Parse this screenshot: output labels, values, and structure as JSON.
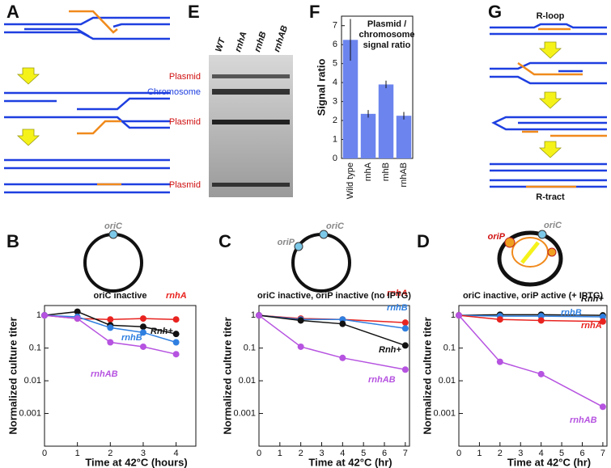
{
  "panel_letters": [
    "A",
    "E",
    "F",
    "G",
    "B",
    "C",
    "D"
  ],
  "gel": {
    "lanes": [
      "WT",
      "rnhA",
      "rnhB",
      "rnhAB"
    ],
    "bands": [
      "Plasmid",
      "Chromosome",
      "Plasmid",
      "Plasmid"
    ]
  },
  "schematic_g": {
    "top": "R-loop",
    "bottom": "R-tract"
  },
  "maps": [
    {
      "origins": [
        "oriC"
      ]
    },
    {
      "origins": [
        "oriC",
        "oriP"
      ]
    },
    {
      "origins": [
        "oriC",
        "oriP"
      ]
    }
  ],
  "chart_data": [
    {
      "type": "bar",
      "title": [
        "Plasmid /",
        "chromosome",
        "signal ratio"
      ],
      "ylabel": "Signal ratio",
      "categories": [
        "Wild type",
        "rnhA",
        "rnhB",
        "rnhAB"
      ],
      "values": [
        6.25,
        2.35,
        3.9,
        2.25
      ],
      "errors": [
        1.1,
        0.2,
        0.2,
        0.2
      ],
      "color": "#6b84ee",
      "ylim": [
        0,
        7.5
      ],
      "yticks": [
        0,
        1,
        2,
        3,
        4,
        5,
        6,
        7
      ]
    },
    {
      "type": "line",
      "title": "oriC inactive",
      "xlabel": "Time at 42°C (hours)",
      "ylabel": "Normalized culture titer",
      "log_y": true,
      "x": [
        0,
        1,
        2,
        3,
        4
      ],
      "xlim": [
        0,
        4.6
      ],
      "xticks": [
        0,
        1,
        2,
        3,
        4
      ],
      "ylim": [
        0.0001,
        2
      ],
      "yticks": [
        0.001,
        0.01,
        0.1,
        1
      ],
      "series": [
        {
          "name": "rnhA",
          "color": "#e8231f",
          "values": [
            1,
            0.8,
            0.75,
            0.8,
            0.75
          ]
        },
        {
          "name": "Rnh+",
          "color": "#111111",
          "values": [
            1,
            1.3,
            0.5,
            0.45,
            0.27
          ]
        },
        {
          "name": "rnhB",
          "color": "#2f7fe0",
          "values": [
            1,
            0.9,
            0.42,
            0.3,
            0.15
          ]
        },
        {
          "name": "rnhAB",
          "color": "#b653e0",
          "values": [
            1,
            0.8,
            0.15,
            0.11,
            0.065
          ]
        }
      ]
    },
    {
      "type": "line",
      "title": "oriC inactive, oriP inactive (no IPTG)",
      "xlabel": "Time at 42°C (hr)",
      "ylabel": "Normalized culture titer",
      "log_y": true,
      "x": [
        0,
        2,
        4,
        7
      ],
      "xlim": [
        0,
        7.2
      ],
      "xticks": [
        0,
        1,
        2,
        3,
        4,
        5,
        6,
        7
      ],
      "ylim": [
        0.0001,
        2
      ],
      "yticks": [
        0.001,
        0.01,
        0.1,
        1
      ],
      "series": [
        {
          "name": "rnhA",
          "color": "#e8231f",
          "values": [
            1,
            0.8,
            0.75,
            0.6
          ]
        },
        {
          "name": "rnhB",
          "color": "#2f7fe0",
          "values": [
            1,
            0.75,
            0.75,
            0.4
          ]
        },
        {
          "name": "Rnh+",
          "color": "#111111",
          "values": [
            1,
            0.7,
            0.55,
            0.12
          ]
        },
        {
          "name": "rnhAB",
          "color": "#b653e0",
          "values": [
            1,
            0.11,
            0.05,
            0.022
          ]
        }
      ]
    },
    {
      "type": "line",
      "title": "oriC inactive, oriP active (+ IPTG)",
      "xlabel": "Time at 42°C (hr)",
      "ylabel": "Normalized culture titer",
      "log_y": true,
      "x": [
        0,
        2,
        4,
        7
      ],
      "xlim": [
        0,
        7.2
      ],
      "xticks": [
        0,
        1,
        2,
        3,
        4,
        5,
        6,
        7
      ],
      "ylim": [
        0.0001,
        2
      ],
      "yticks": [
        0.001,
        0.01,
        0.1,
        1
      ],
      "series": [
        {
          "name": "Rnh+",
          "color": "#111111",
          "values": [
            1,
            1.05,
            1.05,
            1.0
          ]
        },
        {
          "name": "rnhB",
          "color": "#2f7fe0",
          "values": [
            1,
            0.95,
            0.95,
            0.9
          ]
        },
        {
          "name": "rnhA",
          "color": "#e8231f",
          "values": [
            1,
            0.75,
            0.7,
            0.65
          ]
        },
        {
          "name": "rnhAB",
          "color": "#b653e0",
          "values": [
            1,
            0.038,
            0.016,
            0.0016
          ]
        }
      ]
    }
  ]
}
